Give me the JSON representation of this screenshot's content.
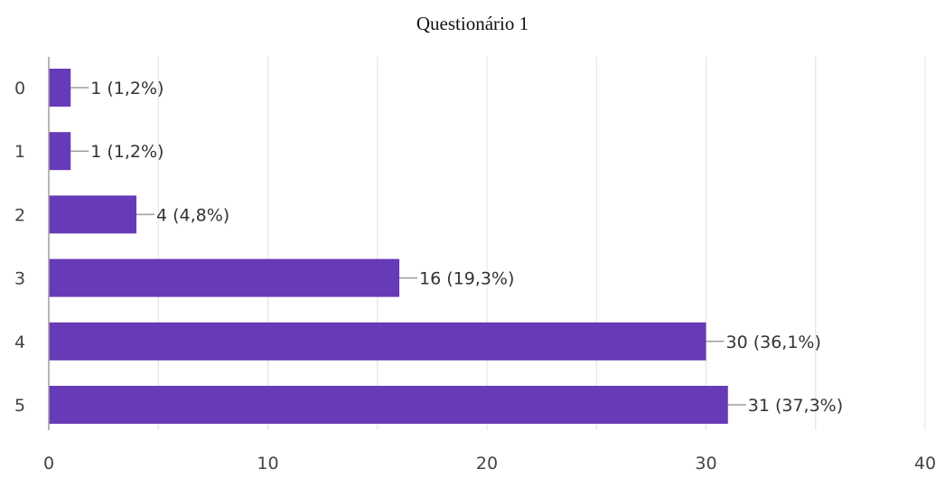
{
  "chart_data": {
    "type": "bar",
    "orientation": "horizontal",
    "title": "Questionário 1",
    "xlabel": "",
    "ylabel": "",
    "categories": [
      "0",
      "1",
      "2",
      "3",
      "4",
      "5"
    ],
    "values": [
      1,
      1,
      4,
      16,
      30,
      31
    ],
    "data_labels": [
      "1 (1,2%)",
      "1 (1,2%)",
      "4 (4,8%)",
      "16 (19,3%)",
      "30 (36,1%)",
      "31 (37,3%)"
    ],
    "xlim": [
      0,
      40
    ],
    "x_ticks": [
      "0",
      "10",
      "20",
      "30",
      "40"
    ],
    "grid": true,
    "legend": "none",
    "colors": {
      "bar": "#673ab7",
      "grid": "#e0e0e0",
      "axis": "#9e9e9e",
      "leader": "#9e9e9e"
    }
  }
}
